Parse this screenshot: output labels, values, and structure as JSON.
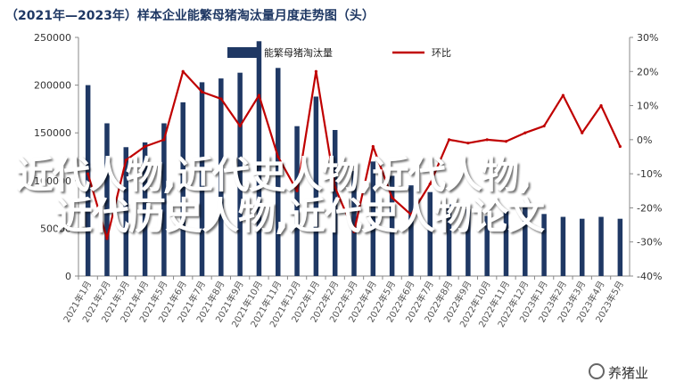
{
  "chart_data": {
    "type": "bar+line",
    "title": "（2021年—2023年）样本企业能繁母猪淘汰量月度走势图（头）",
    "categories": [
      "2021年1月",
      "2021年2月",
      "2021年3月",
      "2021年4月",
      "2021年5月",
      "2021年6月",
      "2021年7月",
      "2021年8月",
      "2021年9月",
      "2021年10月",
      "2021年11月",
      "2021年12月",
      "2022年1月",
      "2022年2月",
      "2022年3月",
      "2022年4月",
      "2022年5月",
      "2022年6月",
      "2022年7月",
      "2022年8月",
      "2022年9月",
      "2022年10月",
      "2022年11月",
      "2022年12月",
      "2023年1月",
      "2023年2月",
      "2023年3月",
      "2023年4月",
      "2023年5月"
    ],
    "series": [
      {
        "name": "能繁母猪淘汰量",
        "type": "bar",
        "axis": "left",
        "color": "#1f3864",
        "values": [
          200000,
          160000,
          135000,
          140000,
          160000,
          182000,
          203000,
          207000,
          213000,
          246000,
          218000,
          157000,
          188000,
          153000,
          110000,
          120000,
          105000,
          95000,
          88000,
          75000,
          70000,
          63000,
          68000,
          72000,
          65000,
          62000,
          60000,
          62000,
          60000
        ]
      },
      {
        "name": "环比",
        "type": "line",
        "axis": "right",
        "color": "#c00000",
        "values": [
          -10.0,
          -29.0,
          -6.0,
          -2.0,
          0.0,
          20.0,
          14.0,
          12.0,
          4.0,
          13.0,
          -5.0,
          -15.0,
          20.0,
          -14.0,
          -27.0,
          -2.0,
          -17.0,
          -22.0,
          -13.0,
          0.0,
          -1.0,
          0.0,
          -0.5,
          2.0,
          4.0,
          13.0,
          2.0,
          10.0,
          -2.0
        ]
      }
    ],
    "y_left": {
      "min": 0,
      "max": 250000,
      "ticks": [
        "0",
        "50000",
        "100000",
        "150000",
        "200000",
        "250000"
      ]
    },
    "y_right": {
      "min": -40,
      "max": 30,
      "ticks": [
        "-40%",
        "-30%",
        "-20%",
        "-10%",
        "0%",
        "10%",
        "20%",
        "30%"
      ]
    },
    "grid": false,
    "legend_position": "top-center"
  },
  "overlay": {
    "line1": "近代人物,近代史人物,近代人物,",
    "line2": "近代历史人物,近代史人物论文"
  },
  "watermark": {
    "text": "养猪业"
  }
}
